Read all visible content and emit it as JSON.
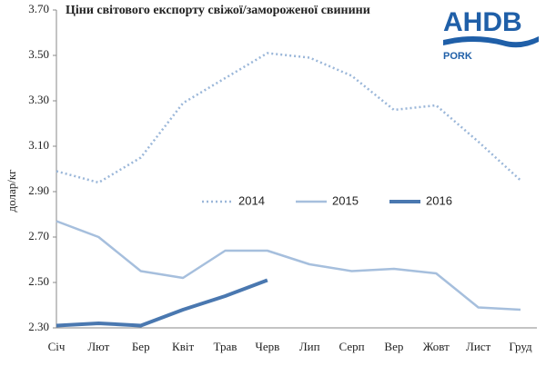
{
  "chart_data": {
    "type": "line",
    "title": "Ціни світового експорту свіжої/замороженої свинини",
    "logo": "AHDB",
    "logo_subtitle": "PORK",
    "y_label": "долар/кг",
    "categories": [
      "Січ",
      "Лют",
      "Бер",
      "Квіт",
      "Трав",
      "Черв",
      "Лип",
      "Серп",
      "Вер",
      "Жовт",
      "Лист",
      "Груд"
    ],
    "series": [
      {
        "name": "2014",
        "color": "#9bb7d9",
        "dash": "dotted",
        "width": 2.5,
        "values": [
          2.99,
          2.94,
          3.05,
          3.29,
          3.4,
          3.51,
          3.49,
          3.41,
          3.26,
          3.28,
          3.12,
          2.95
        ]
      },
      {
        "name": "2015",
        "color": "#a6bfdd",
        "dash": "solid",
        "width": 2.5,
        "values": [
          2.77,
          2.7,
          2.55,
          2.52,
          2.64,
          2.64,
          2.58,
          2.55,
          2.56,
          2.54,
          2.39,
          2.38
        ]
      },
      {
        "name": "2016",
        "color": "#4a78b0",
        "dash": "solid",
        "width": 4,
        "values": [
          2.31,
          2.32,
          2.31,
          2.38,
          2.44,
          2.51,
          null,
          null,
          null,
          null,
          null,
          null
        ]
      }
    ],
    "ylim": [
      2.3,
      3.7
    ],
    "yticks": [
      {
        "value": 2.3,
        "label": "2.30"
      },
      {
        "value": 2.5,
        "label": "2.50"
      },
      {
        "value": 2.7,
        "label": "2.70"
      },
      {
        "value": 2.9,
        "label": "2.90"
      },
      {
        "value": 3.1,
        "label": "3.10"
      },
      {
        "value": 3.3,
        "label": "3.30"
      },
      {
        "value": 3.5,
        "label": "3.50"
      },
      {
        "value": 3.7,
        "label": "3.70"
      }
    ],
    "grid": false,
    "legend": "center"
  }
}
